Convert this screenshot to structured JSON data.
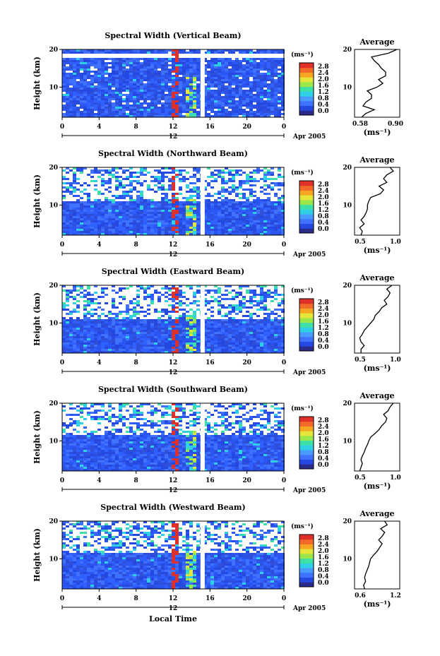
{
  "colorbar": {
    "unit": "(ms⁻¹)",
    "ticks": [
      "2.8",
      "2.4",
      "2.0",
      "1.6",
      "1.2",
      "0.8",
      "0.4",
      "0.0"
    ],
    "colors": [
      "#2b2b8c",
      "#2448e0",
      "#3f73ff",
      "#4a9bff",
      "#2fcfe6",
      "#3fe0a8",
      "#9be64a",
      "#e6e63a",
      "#f5a623",
      "#f26a2a",
      "#e0302a"
    ]
  },
  "x_ticks": [
    "0",
    "4",
    "8",
    "12",
    "16",
    "20",
    "0"
  ],
  "date_marker": "12",
  "date_label": "Apr 2005",
  "x_axis_label": "Local Time",
  "y_axis_label": "Height (km)",
  "y_ticks": [
    "20",
    "10"
  ],
  "avg_title": "Average",
  "avg_unit": "(ms⁻¹)",
  "chart_data": [
    {
      "type": "heatmap",
      "title": "Spectral Width (Vertical Beam)",
      "x": "Local Time (h)",
      "xlim": [
        0,
        24
      ],
      "ylim": [
        2,
        20
      ],
      "gap_hour": 15.2,
      "clear_band_km": [
        18.2,
        19.0
      ],
      "avg_profile": {
        "xticks": [
          "0.58",
          "0.90"
        ],
        "xlim": [
          0.58,
          0.9
        ],
        "heights": [
          2,
          3,
          4,
          5,
          6,
          7,
          8,
          9,
          10,
          11,
          12,
          13,
          14,
          15,
          16,
          17,
          18,
          19,
          20
        ],
        "values": [
          0.63,
          0.66,
          0.72,
          0.64,
          0.66,
          0.7,
          0.7,
          0.67,
          0.74,
          0.78,
          0.75,
          0.8,
          0.8,
          0.77,
          0.75,
          0.72,
          0.7,
          0.82,
          0.88
        ]
      }
    },
    {
      "type": "heatmap",
      "title": "Spectral Width (Northward Beam)",
      "x": "Local Time (h)",
      "xlim": [
        0,
        24
      ],
      "ylim": [
        2,
        20
      ],
      "gap_hour": 15.2,
      "sparse_above_km": 11.5,
      "avg_profile": {
        "xticks": [
          "0.5",
          "1.0"
        ],
        "xlim": [
          0.4,
          1.1
        ],
        "heights": [
          2,
          3,
          4,
          5,
          6,
          7,
          8,
          9,
          10,
          11,
          12,
          13,
          14,
          15,
          16,
          17,
          18,
          19,
          20
        ],
        "values": [
          0.5,
          0.52,
          0.48,
          0.55,
          0.5,
          0.55,
          0.58,
          0.6,
          0.6,
          0.62,
          0.65,
          0.8,
          0.85,
          0.78,
          0.9,
          0.85,
          0.9,
          1.0,
          0.95
        ]
      }
    },
    {
      "type": "heatmap",
      "title": "Spectral Width (Eastward Beam)",
      "x": "Local Time (h)",
      "xlim": [
        0,
        24
      ],
      "ylim": [
        2,
        20
      ],
      "gap_hour": 15.2,
      "sparse_above_km": 11.5,
      "avg_profile": {
        "xticks": [
          "0.5",
          "1.0"
        ],
        "xlim": [
          0.4,
          1.1
        ],
        "heights": [
          2,
          3,
          4,
          5,
          6,
          7,
          8,
          9,
          10,
          11,
          12,
          13,
          14,
          15,
          16,
          17,
          18,
          19,
          20
        ],
        "values": [
          0.5,
          0.5,
          0.55,
          0.5,
          0.48,
          0.52,
          0.55,
          0.6,
          0.65,
          0.7,
          0.72,
          0.78,
          0.82,
          0.9,
          0.86,
          0.92,
          0.95,
          0.9,
          0.98
        ]
      }
    },
    {
      "type": "heatmap",
      "title": "Spectral Width (Southward Beam)",
      "x": "Local Time (h)",
      "xlim": [
        0,
        24
      ],
      "ylim": [
        2,
        20
      ],
      "gap_hour": 15.2,
      "sparse_above_km": 12.0,
      "avg_profile": {
        "xticks": [
          "0.5",
          "1.0"
        ],
        "xlim": [
          0.4,
          1.1
        ],
        "heights": [
          2,
          3,
          4,
          5,
          6,
          7,
          8,
          9,
          10,
          11,
          12,
          13,
          14,
          15,
          16,
          17,
          18,
          19,
          20
        ],
        "values": [
          0.48,
          0.5,
          0.52,
          0.5,
          0.52,
          0.55,
          0.57,
          0.6,
          0.62,
          0.65,
          0.72,
          0.78,
          0.82,
          0.88,
          0.9,
          0.85,
          0.92,
          0.95,
          1.0
        ]
      }
    },
    {
      "type": "heatmap",
      "title": "Spectral Width (Westward Beam)",
      "x": "Local Time (h)",
      "xlim": [
        0,
        24
      ],
      "ylim": [
        2,
        20
      ],
      "gap_hour": 15.2,
      "sparse_above_km": 12.0,
      "avg_profile": {
        "xticks": [
          "0.6",
          "1.2"
        ],
        "xlim": [
          0.4,
          1.3
        ],
        "heights": [
          2,
          3,
          4,
          5,
          6,
          7,
          8,
          9,
          10,
          11,
          12,
          13,
          14,
          15,
          16,
          17,
          18,
          19,
          20
        ],
        "values": [
          0.6,
          0.58,
          0.62,
          0.6,
          0.62,
          0.65,
          0.68,
          0.7,
          0.72,
          0.78,
          0.85,
          0.9,
          0.95,
          0.88,
          0.95,
          1.0,
          0.92,
          1.05,
          1.0
        ]
      }
    }
  ]
}
